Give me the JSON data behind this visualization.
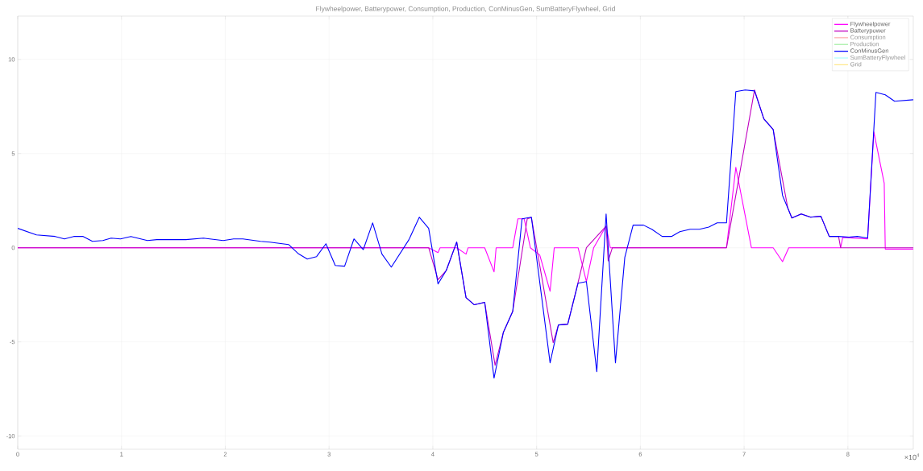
{
  "chart_data": {
    "type": "line",
    "title": "Flywheelpower, Batterypower, Consumption, Production, ConMinusGen, SumBatteryFlywheel, Grid",
    "annotations": [
      "×10$^{4}$"
    ],
    "xlim": [
      0,
      8.63
    ],
    "ylim": [
      -10.7,
      12.3
    ],
    "xticks": [
      0,
      1,
      2,
      3,
      4,
      5,
      6,
      7,
      8
    ],
    "yticks": [
      -10,
      -5,
      0,
      5,
      10
    ],
    "grid": true,
    "legend": "top right",
    "line_style": "solid",
    "series": [
      {
        "name": "Flywheelpower",
        "color": "#ff00ff",
        "x": [
          0,
          3.96,
          4.05,
          4.07,
          4.23,
          4.32,
          4.34,
          4.5,
          4.59,
          4.61,
          4.77,
          4.82,
          4.88,
          4.94,
          5.03,
          5.13,
          5.17,
          5.4,
          5.48,
          5.55,
          5.67,
          5.71,
          6.83,
          6.92,
          7.07,
          7.28,
          7.37,
          7.43,
          7.93,
          7.95,
          8.19,
          8.25,
          8.35,
          8.36,
          8.63
        ],
        "values": [
          0,
          0,
          -0.26,
          0,
          0,
          -0.34,
          0,
          0,
          -1.28,
          0,
          0,
          1.54,
          1.54,
          0,
          -0.38,
          -2.31,
          0,
          0,
          -1.79,
          0,
          1.15,
          0,
          0,
          4.27,
          0,
          0,
          -0.74,
          0,
          0,
          0.55,
          0.47,
          6.15,
          3.42,
          -0.07,
          -0.07
        ]
      },
      {
        "name": "Batterypower",
        "color": "#c000c0",
        "x": [
          0,
          3.96,
          4.05,
          4.13,
          4.23,
          4.32,
          4.4,
          4.5,
          4.6,
          4.68,
          4.77,
          4.91,
          4.95,
          5.16,
          5.21,
          5.3,
          5.4,
          5.48,
          5.67,
          5.69,
          5.73,
          6.83,
          7.1,
          7.19,
          7.28,
          7.42,
          7.46,
          7.55,
          7.64,
          7.74,
          7.82,
          7.91,
          7.93,
          8.63
        ],
        "values": [
          0,
          0,
          -1.7,
          -1.2,
          0.3,
          -2.65,
          -3.03,
          -2.9,
          -6.24,
          -4.49,
          -3.38,
          1.54,
          1.6,
          -5.04,
          -4.1,
          -4.06,
          -1.84,
          0,
          1.15,
          -0.7,
          0,
          0,
          8.38,
          6.84,
          6.28,
          2.13,
          1.58,
          1.79,
          1.62,
          1.67,
          0.6,
          0.6,
          0,
          0
        ]
      },
      {
        "name": "Consumption",
        "color": "#ffb0b0"
      },
      {
        "name": "Production",
        "color": "#a8f0a8"
      },
      {
        "name": "ConMinusGen",
        "color": "#0000ff",
        "x": [
          0,
          0.18,
          0.36,
          0.45,
          0.54,
          0.63,
          0.72,
          0.82,
          0.9,
          0.99,
          1.09,
          1.25,
          1.34,
          1.62,
          1.79,
          1.98,
          2.08,
          2.17,
          2.34,
          2.43,
          2.61,
          2.7,
          2.79,
          2.88,
          2.97,
          3.06,
          3.15,
          3.24,
          3.33,
          3.42,
          3.51,
          3.6,
          3.77,
          3.87,
          3.96,
          4.05,
          4.13,
          4.23,
          4.32,
          4.4,
          4.5,
          4.59,
          4.68,
          4.77,
          4.86,
          4.95,
          5.13,
          5.21,
          5.3,
          5.4,
          5.48,
          5.58,
          5.67,
          5.76,
          5.85,
          5.93,
          6.03,
          6.11,
          6.21,
          6.3,
          6.38,
          6.48,
          6.57,
          6.66,
          6.74,
          6.83,
          6.92,
          7.01,
          7.1,
          7.19,
          7.28,
          7.37,
          7.46,
          7.55,
          7.64,
          7.74,
          7.82,
          7.91,
          8.01,
          8.09,
          8.19,
          8.27,
          8.36,
          8.45,
          8.63
        ],
        "values": [
          1.03,
          0.68,
          0.6,
          0.47,
          0.6,
          0.6,
          0.34,
          0.38,
          0.51,
          0.47,
          0.6,
          0.38,
          0.43,
          0.43,
          0.51,
          0.38,
          0.47,
          0.47,
          0.34,
          0.3,
          0.17,
          -0.3,
          -0.6,
          -0.47,
          0.21,
          -0.94,
          -0.98,
          0.47,
          -0.1,
          1.32,
          -0.34,
          -1.03,
          0.43,
          1.62,
          1.03,
          -1.92,
          -1.2,
          0.3,
          -2.65,
          -3.03,
          -2.9,
          -6.92,
          -4.49,
          -3.38,
          1.54,
          1.62,
          -6.11,
          -4.1,
          -4.06,
          -1.88,
          -1.8,
          -6.58,
          1.79,
          -6.11,
          -0.51,
          1.2,
          1.2,
          0.98,
          0.6,
          0.6,
          0.85,
          0.98,
          0.98,
          1.1,
          1.32,
          1.32,
          8.29,
          8.38,
          8.33,
          6.84,
          6.28,
          2.78,
          1.58,
          1.79,
          1.62,
          1.67,
          0.6,
          0.6,
          0.56,
          0.6,
          0.51,
          8.25,
          8.12,
          7.78,
          7.86
        ]
      },
      {
        "name": "SumBatteryFlywheel",
        "color": "#b0ffff"
      },
      {
        "name": "Grid",
        "color": "#ffe890"
      }
    ]
  }
}
